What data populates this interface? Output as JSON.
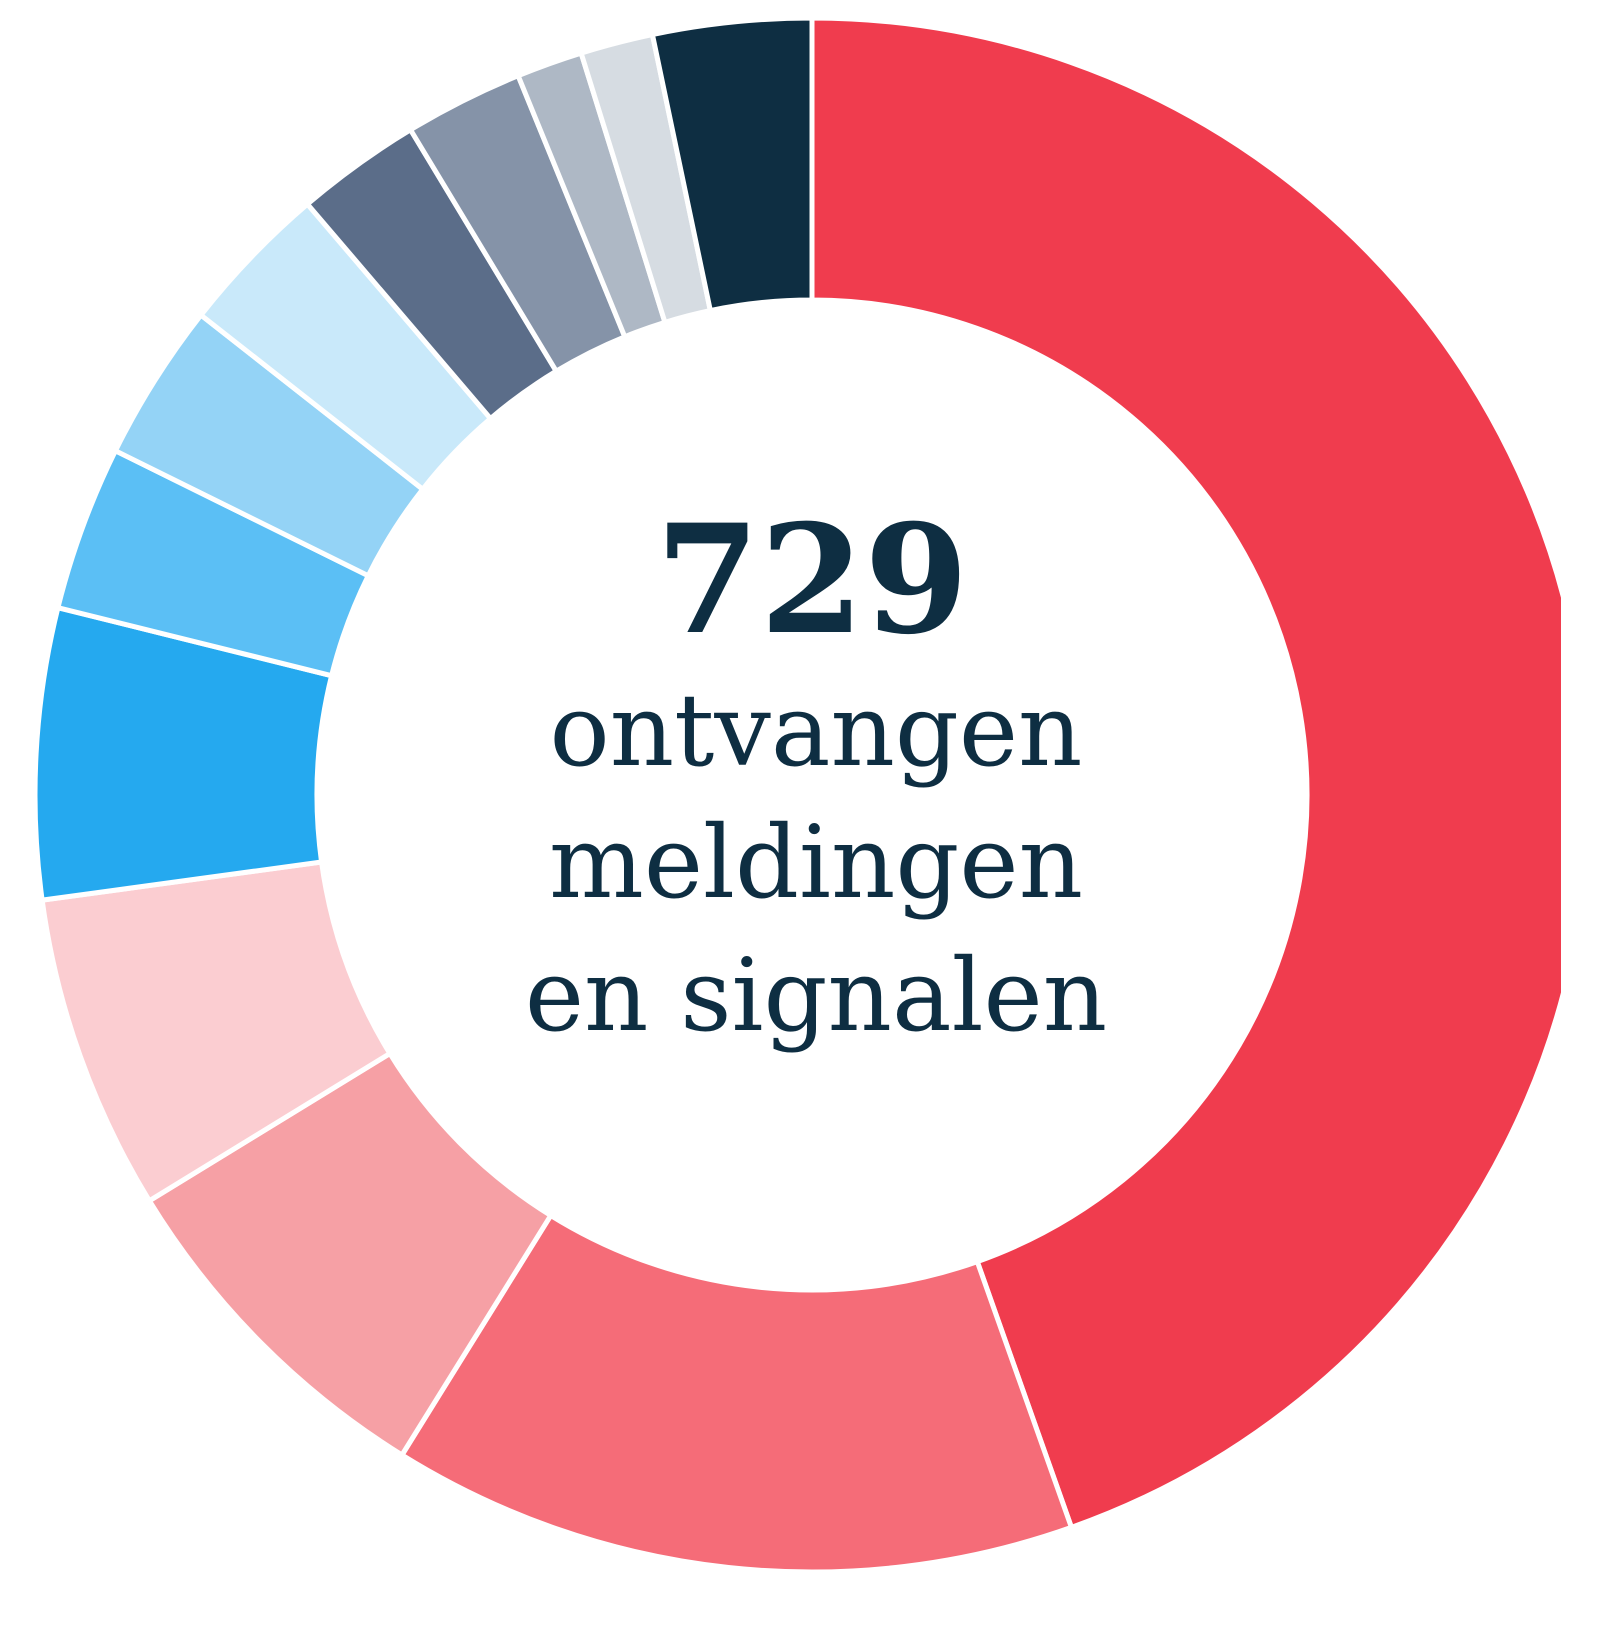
{
  "chart_data": {
    "type": "donut",
    "values": [
      325,
      104,
      54,
      48,
      44,
      25,
      24,
      23,
      19,
      18,
      10,
      11,
      24
    ],
    "colors": [
      "#f03c4e",
      "#f56c78",
      "#f6a0a5",
      "#fbcdd1",
      "#25a9ef",
      "#5bbff5",
      "#94d3f6",
      "#c9e9fa",
      "#5b6d89",
      "#8593a8",
      "#aeb8c5",
      "#d6dce2",
      "#0e2e42"
    ],
    "total": 729,
    "center_text": [
      "ontvangen",
      "meldingen",
      "en signalen"
    ]
  }
}
